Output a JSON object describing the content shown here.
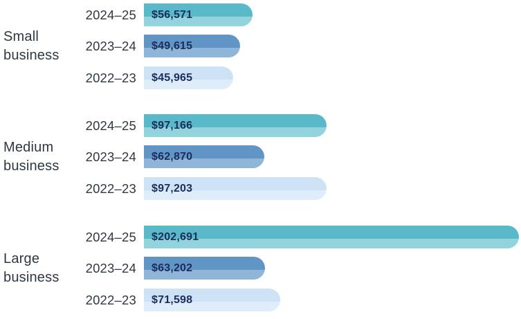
{
  "chart_data": {
    "type": "bar",
    "orientation": "horizontal",
    "title": "",
    "xlabel": "",
    "ylabel": "",
    "grid": false,
    "legend": "none",
    "axes_visible": false,
    "xlim": [
      0,
      202691
    ],
    "value_prefix": "$",
    "series_labels": [
      "2024–25",
      "2023–24",
      "2022–23"
    ],
    "series_colors": [
      {
        "name": "2024–25",
        "top": "#5ab9c9",
        "bottom": "#92d3dc"
      },
      {
        "name": "2023–24",
        "top": "#6095c5",
        "bottom": "#8fb5d9"
      },
      {
        "name": "2022–23",
        "top": "#cde2f4",
        "bottom": "#dfecf9"
      }
    ],
    "text_colors": {
      "category_label": "#2f3743",
      "year_label": "#2f3743",
      "value_label": "#1d2e5c"
    },
    "groups": [
      {
        "category": "Small business",
        "bars": [
          {
            "year": "2024–25",
            "value": 56571,
            "label": "$56,571"
          },
          {
            "year": "2023–24",
            "value": 49615,
            "label": "$49,615"
          },
          {
            "year": "2022–23",
            "value": 45965,
            "label": "$45,965"
          }
        ]
      },
      {
        "category": "Medium business",
        "bars": [
          {
            "year": "2024–25",
            "value": 97166,
            "label": "$97,166"
          },
          {
            "year": "2023–24",
            "value": 62870,
            "label": "$62,870"
          },
          {
            "year": "2022–23",
            "value": 97203,
            "label": "$97,203"
          }
        ]
      },
      {
        "category": "Large business",
        "bars": [
          {
            "year": "2024–25",
            "value": 202691,
            "label": "$202,691"
          },
          {
            "year": "2023–24",
            "value": 63202,
            "label": "$63,202"
          },
          {
            "year": "2022–23",
            "value": 71598,
            "label": "$71,598"
          }
        ]
      }
    ]
  }
}
